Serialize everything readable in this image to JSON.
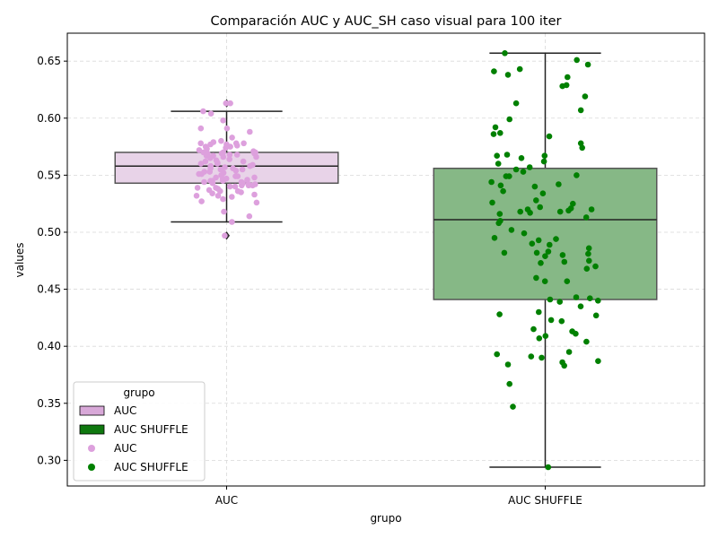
{
  "chart_data": {
    "type": "box",
    "title": "Comparación AUC y AUC_SH caso visual para 100 iter",
    "xlabel": "grupo",
    "ylabel": "values",
    "categories": [
      "AUC",
      "AUC SHUFFLE"
    ],
    "ylim": [
      0.2775,
      0.6745
    ],
    "yticks": [
      0.3,
      0.35,
      0.4,
      0.45,
      0.5,
      0.55,
      0.6,
      0.65
    ],
    "ytick_labels": [
      "0.30",
      "0.35",
      "0.40",
      "0.45",
      "0.50",
      "0.55",
      "0.60",
      "0.65"
    ],
    "grid": true,
    "colors": {
      "auc_box": "#e8d3e8",
      "auc_points": "#dda0dd",
      "shuffle_box": "#86b886",
      "shuffle_points": "#008000",
      "legend_auc_patch": "#d8a8d8",
      "legend_shuffle_patch": "#0f780f",
      "box_edge": "#555555",
      "line": "#222222"
    },
    "boxes": [
      {
        "name": "AUC",
        "whisker_low": 0.509,
        "q1": 0.543,
        "median": 0.558,
        "q3": 0.57,
        "whisker_high": 0.606,
        "outliers": [
          0.613,
          0.497
        ]
      },
      {
        "name": "AUC SHUFFLE",
        "whisker_low": 0.294,
        "q1": 0.441,
        "median": 0.511,
        "q3": 0.556,
        "whisker_high": 0.657,
        "outliers": []
      }
    ],
    "series": [
      {
        "name": "AUC",
        "values": [
          0.613,
          0.613,
          0.606,
          0.604,
          0.598,
          0.591,
          0.591,
          0.588,
          0.583,
          0.58,
          0.579,
          0.578,
          0.578,
          0.578,
          0.577,
          0.577,
          0.576,
          0.575,
          0.575,
          0.574,
          0.573,
          0.572,
          0.571,
          0.57,
          0.57,
          0.57,
          0.569,
          0.569,
          0.569,
          0.568,
          0.568,
          0.567,
          0.567,
          0.566,
          0.566,
          0.565,
          0.564,
          0.563,
          0.562,
          0.562,
          0.561,
          0.56,
          0.56,
          0.559,
          0.558,
          0.558,
          0.557,
          0.556,
          0.556,
          0.555,
          0.555,
          0.554,
          0.553,
          0.553,
          0.552,
          0.551,
          0.551,
          0.55,
          0.549,
          0.549,
          0.548,
          0.548,
          0.547,
          0.547,
          0.546,
          0.546,
          0.546,
          0.545,
          0.545,
          0.545,
          0.544,
          0.544,
          0.543,
          0.543,
          0.542,
          0.542,
          0.541,
          0.541,
          0.541,
          0.54,
          0.54,
          0.539,
          0.539,
          0.538,
          0.537,
          0.536,
          0.536,
          0.535,
          0.534,
          0.533,
          0.532,
          0.532,
          0.531,
          0.529,
          0.527,
          0.526,
          0.518,
          0.514,
          0.509,
          0.497
        ]
      },
      {
        "name": "AUC SHUFFLE",
        "values": [
          0.657,
          0.651,
          0.647,
          0.643,
          0.641,
          0.638,
          0.636,
          0.629,
          0.628,
          0.619,
          0.613,
          0.607,
          0.599,
          0.592,
          0.587,
          0.586,
          0.584,
          0.578,
          0.574,
          0.568,
          0.567,
          0.567,
          0.565,
          0.562,
          0.56,
          0.557,
          0.555,
          0.553,
          0.55,
          0.549,
          0.549,
          0.544,
          0.542,
          0.541,
          0.54,
          0.536,
          0.534,
          0.528,
          0.526,
          0.525,
          0.522,
          0.521,
          0.52,
          0.52,
          0.519,
          0.518,
          0.518,
          0.517,
          0.516,
          0.513,
          0.51,
          0.508,
          0.502,
          0.499,
          0.495,
          0.494,
          0.493,
          0.49,
          0.489,
          0.486,
          0.483,
          0.482,
          0.482,
          0.481,
          0.48,
          0.479,
          0.475,
          0.474,
          0.473,
          0.47,
          0.468,
          0.46,
          0.457,
          0.457,
          0.443,
          0.442,
          0.441,
          0.44,
          0.439,
          0.435,
          0.43,
          0.428,
          0.427,
          0.423,
          0.422,
          0.415,
          0.413,
          0.411,
          0.409,
          0.407,
          0.404,
          0.395,
          0.393,
          0.391,
          0.39,
          0.387,
          0.386,
          0.384,
          0.383,
          0.367,
          0.347,
          0.294
        ]
      }
    ],
    "legend": {
      "title": "grupo",
      "placement": "lower-left",
      "entries": [
        {
          "label": "AUC",
          "kind": "patch",
          "color": "#d8a8d8"
        },
        {
          "label": "AUC SHUFFLE",
          "kind": "patch",
          "color": "#0f780f"
        },
        {
          "label": "AUC",
          "kind": "marker",
          "color": "#dda0dd"
        },
        {
          "label": "AUC SHUFFLE",
          "kind": "marker",
          "color": "#008000"
        }
      ]
    }
  }
}
